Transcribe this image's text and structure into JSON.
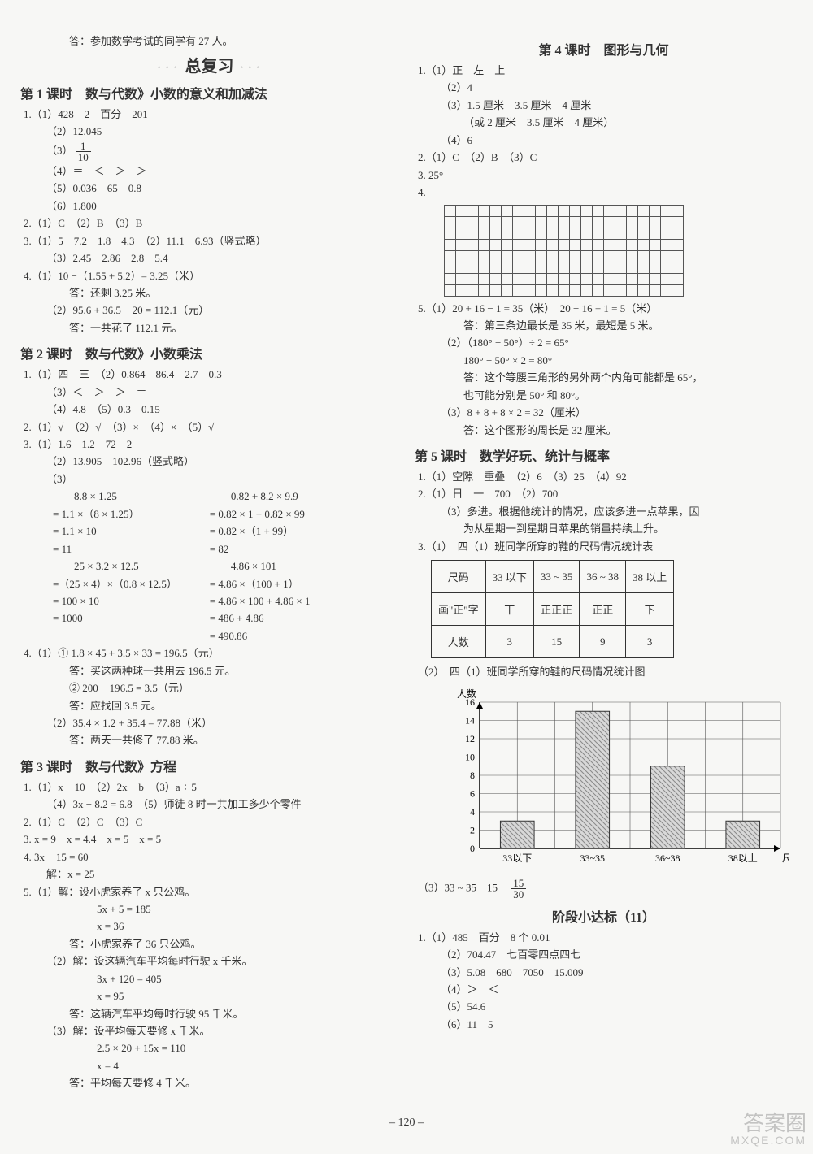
{
  "topLine": "答：参加数学考试的同学有 27 人。",
  "mainTitle": "总复习",
  "lesson1": {
    "title": "第 1 课时　数与代数》小数的意义和加减法",
    "q1": [
      "1.（1）428　2　百分　201",
      "（2）12.045",
      "（3）",
      "（4）＝　＜　＞　＞",
      "（5）0.036　65　0.8",
      "（6）1.800"
    ],
    "frac1": {
      "num": "1",
      "den": "10"
    },
    "q2": "2.（1）C　（2）B　（3）B",
    "q3": [
      "3.（1）5　7.2　1.8　4.3　（2）11.1　6.93（竖式略）",
      "（3）2.45　2.86　2.8　5.4"
    ],
    "q4": [
      "4.（1）10 −（1.55 + 5.2）= 3.25（米）",
      "答：还剩 3.25 米。",
      "（2）95.6 + 36.5 − 20 = 112.1（元）",
      "答：一共花了 112.1 元。"
    ]
  },
  "lesson2": {
    "title": "第 2 课时　数与代数》小数乘法",
    "q1": [
      "1.（1）四　三　（2）0.864　86.4　2.7　0.3",
      "（3）＜　＞　＞　＝",
      "（4）4.8　（5）0.3　0.15"
    ],
    "q2": "2.（1）√　（2）√　（3）×　（4）×　（5）√",
    "q3_1": "3.（1）1.6　1.2　72　2",
    "q3_2": "（2）13.905　102.96（竖式略）",
    "q3_3": "（3）",
    "calcL": [
      "　　8.8 × 1.25",
      "= 1.1 ×（8 × 1.25）",
      "= 1.1 × 10",
      "= 11",
      "　　25 × 3.2 × 12.5",
      "=（25 × 4）×（0.8 × 12.5）",
      "= 100 × 10",
      "= 1000"
    ],
    "calcR": [
      "　　0.82 + 8.2 × 9.9",
      "= 0.82 × 1 + 0.82 × 99",
      "= 0.82 ×（1 + 99）",
      "= 82",
      "　　4.86 × 101",
      "= 4.86 ×（100 + 1）",
      "= 4.86 × 100 + 4.86 × 1",
      "= 486 + 4.86",
      "= 490.86"
    ],
    "q4": [
      "4.（1）① 1.8 × 45 + 3.5 × 33 = 196.5（元）",
      "答：买这两种球一共用去 196.5 元。",
      "② 200 − 196.5 = 3.5（元）",
      "答：应找回 3.5 元。",
      "（2）35.4 × 1.2 + 35.4 = 77.88（米）",
      "答：两天一共修了 77.88 米。"
    ]
  },
  "lesson3": {
    "title": "第 3 课时　数与代数》方程",
    "lines": [
      "1.（1）x − 10　（2）2x − b　（3）a ÷ 5",
      "（4）3x − 8.2 = 6.8　（5）师徒 8 时一共加工多少个零件",
      "2.（1）C　（2）C　（3）C",
      "3. x = 9　x = 4.4　x = 5　x = 5",
      "4. 3x − 15 = 60",
      "解：x = 25",
      "5.（1）解：设小虎家养了 x 只公鸡。",
      "5x + 5 = 185",
      "x = 36",
      "答：小虎家养了 36 只公鸡。",
      "（2）解：设这辆汽车平均每时行驶 x 千米。",
      "3x + 120 = 405",
      "x = 95",
      "答：这辆汽车平均每时行驶 95 千米。",
      "（3）解：设平均每天要修 x 千米。",
      "2.5 × 20 + 15x = 110",
      "x = 4",
      "答：平均每天要修 4 千米。"
    ]
  },
  "lesson4": {
    "title": "第 4 课时　图形与几何",
    "q1": [
      "1.（1）正　左　上",
      "（2）4",
      "（3）1.5 厘米　3.5 厘米　4 厘米",
      "（或 2 厘米　3.5 厘米　4 厘米）",
      "（4）6"
    ],
    "q2": "2.（1）C　（2）B　（3）C",
    "q3": "3. 25°",
    "q4": "4.",
    "grid": {
      "rows": 8,
      "cols": 21
    },
    "q5": [
      "5.（1）20 + 16 − 1 = 35（米）　20 − 16 + 1 = 5（米）",
      "答：第三条边最长是 35 米，最短是 5 米。",
      "（2）（180° − 50°）÷ 2 = 65°",
      "180° − 50° × 2 = 80°",
      "答：这个等腰三角形的另外两个内角可能都是 65°，",
      "也可能分别是 50° 和 80°。",
      "（3）8 + 8 + 8 × 2 = 32（厘米）",
      "答：这个图形的周长是 32 厘米。"
    ]
  },
  "lesson5": {
    "title": "第 5 课时　数学好玩、统计与概率",
    "q1": "1.（1）空隙　重叠　（2）6　（3）25　（4）92",
    "q2": [
      "2.（1）日　一　700　（2）700",
      "（3）多进。根据他统计的情况，应该多进一点苹果，因",
      "为从星期一到星期日苹果的销量持续上升。"
    ],
    "q3_1": "3.（1）　四（1）班同学所穿的鞋的尺码情况统计表",
    "table": {
      "headers": [
        "尺码",
        "33 以下",
        "33 ~ 35",
        "36 ~ 38",
        "38 以上"
      ],
      "row2": [
        "画\"正\"字",
        "丅",
        "正正正",
        "正正",
        "下"
      ],
      "row3": [
        "人数",
        "3",
        "15",
        "9",
        "3"
      ]
    },
    "q3_2": "（2）　四（1）班同学所穿的鞋的尺码情况统计图",
    "chart": {
      "ylabel": "人数",
      "yticks": [
        0,
        2,
        4,
        6,
        8,
        10,
        12,
        14,
        16
      ],
      "categories": [
        "33以下",
        "33~35",
        "36~38",
        "38以上"
      ],
      "values": [
        3,
        15,
        9,
        3
      ],
      "xlabel_suffix": "尺码",
      "bar_pattern": "hatch",
      "stroke": "#555",
      "bg": "#ffffff"
    },
    "q3_3a": "（3）33 ~ 35　15　",
    "frac2": {
      "num": "15",
      "den": "30"
    }
  },
  "stage": {
    "title": "阶段小达标（11）",
    "lines": [
      "1.（1）485　百分　8 个 0.01",
      "（2）704.47　七百零四点四七",
      "（3）5.08　680　7050　15.009",
      "（4）＞　＜",
      "（5）54.6",
      "（6）11　5"
    ]
  },
  "pageNumber": "– 120 –",
  "watermark": {
    "main": "答案圈",
    "sub": "MXQE.COM"
  }
}
